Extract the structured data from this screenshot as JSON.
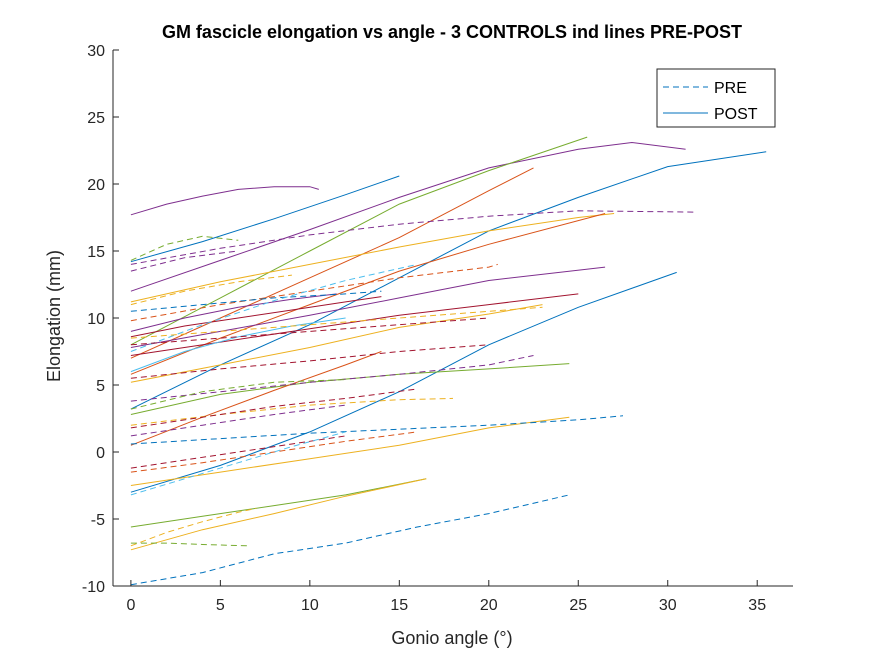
{
  "chart_data": {
    "type": "line",
    "title": "GM fascicle elongation vs angle - 3 CONTROLS ind lines PRE-POST",
    "xlabel": "Gonio angle (°)",
    "ylabel": "Elongation (mm)",
    "xlim": [
      -1,
      37
    ],
    "ylim": [
      -10,
      30
    ],
    "xticks": [
      0,
      5,
      10,
      15,
      20,
      25,
      30,
      35
    ],
    "yticks": [
      -10,
      -5,
      0,
      5,
      10,
      15,
      20,
      25,
      30
    ],
    "xtick_labels": [
      "0",
      "5",
      "10",
      "15",
      "20",
      "25",
      "30",
      "35"
    ],
    "ytick_labels": [
      "-10",
      "-5",
      "0",
      "5",
      "10",
      "15",
      "20",
      "25",
      "30"
    ],
    "grid": false,
    "legend": {
      "placement": "top-right",
      "entries": [
        {
          "label": "PRE",
          "style": "dashed",
          "color": "#0072BD"
        },
        {
          "label": "POST",
          "style": "solid",
          "color": "#0072BD"
        }
      ]
    },
    "series": [
      {
        "style": "solid",
        "color": "#7E2F8E",
        "x": [
          0,
          2,
          4,
          6,
          8,
          10,
          10.5
        ],
        "y": [
          17.7,
          18.5,
          19.1,
          19.6,
          19.8,
          19.8,
          19.6
        ]
      },
      {
        "style": "solid",
        "color": "#7E2F8E",
        "x": [
          0,
          5,
          10,
          15,
          20,
          25,
          28,
          31
        ],
        "y": [
          12.0,
          14.3,
          16.6,
          19.0,
          21.2,
          22.6,
          23.1,
          22.6
        ]
      },
      {
        "style": "solid",
        "color": "#0072BD",
        "x": [
          0,
          4,
          8,
          12,
          15
        ],
        "y": [
          14.2,
          15.7,
          17.4,
          19.2,
          20.6
        ]
      },
      {
        "style": "solid",
        "color": "#77AC30",
        "x": [
          0,
          5,
          10,
          15,
          20,
          25.5
        ],
        "y": [
          8.0,
          11.5,
          15.0,
          18.5,
          21.0,
          23.5
        ]
      },
      {
        "style": "solid",
        "color": "#D95319",
        "x": [
          0,
          5,
          10,
          15,
          20,
          22.5
        ],
        "y": [
          7.0,
          10.0,
          13.0,
          16.0,
          19.5,
          21.2
        ]
      },
      {
        "style": "solid",
        "color": "#0072BD",
        "x": [
          0,
          5,
          10,
          15,
          20,
          25,
          30,
          35.5
        ],
        "y": [
          3.2,
          6.5,
          9.5,
          13.0,
          16.5,
          19.0,
          21.3,
          22.4
        ]
      },
      {
        "style": "solid",
        "color": "#EDB120",
        "x": [
          0,
          5,
          10,
          15,
          20,
          25,
          27
        ],
        "y": [
          11.2,
          12.7,
          14.0,
          15.3,
          16.5,
          17.5,
          17.8
        ]
      },
      {
        "style": "solid",
        "color": "#D95319",
        "x": [
          0,
          5,
          10,
          15,
          20,
          26.5
        ],
        "y": [
          5.8,
          8.5,
          11.0,
          13.5,
          15.5,
          17.8
        ]
      },
      {
        "style": "solid",
        "color": "#7E2F8E",
        "x": [
          0,
          5,
          10,
          15,
          20,
          26.5
        ],
        "y": [
          7.8,
          9.0,
          10.2,
          11.5,
          12.8,
          13.8
        ]
      },
      {
        "style": "solid",
        "color": "#0072BD",
        "x": [
          0,
          5,
          10,
          15,
          20,
          25,
          30.5
        ],
        "y": [
          -3.0,
          -1.0,
          1.5,
          4.5,
          8.0,
          10.8,
          13.4
        ]
      },
      {
        "style": "solid",
        "color": "#A2142F",
        "x": [
          0,
          5,
          10,
          15,
          20,
          25
        ],
        "y": [
          7.2,
          8.2,
          9.2,
          10.2,
          11.0,
          11.8
        ]
      },
      {
        "style": "solid",
        "color": "#EDB120",
        "x": [
          0,
          5,
          10,
          15,
          20,
          23
        ],
        "y": [
          5.2,
          6.5,
          7.8,
          9.3,
          10.3,
          11.0
        ]
      },
      {
        "style": "solid",
        "color": "#77AC30",
        "x": [
          0,
          5,
          10,
          15,
          20,
          24.5
        ],
        "y": [
          2.8,
          4.3,
          5.2,
          5.8,
          6.2,
          6.6
        ]
      },
      {
        "style": "solid",
        "color": "#D95319",
        "x": [
          0,
          4,
          8,
          12,
          14
        ],
        "y": [
          0.5,
          2.6,
          4.6,
          6.5,
          7.5
        ]
      },
      {
        "style": "solid",
        "color": "#EDB120",
        "x": [
          0,
          5,
          10,
          15,
          20,
          24.5
        ],
        "y": [
          -2.5,
          -1.5,
          -0.5,
          0.5,
          1.8,
          2.6
        ]
      },
      {
        "style": "solid",
        "color": "#77AC30",
        "x": [
          0,
          4,
          8,
          12,
          16.5
        ],
        "y": [
          -5.6,
          -4.8,
          -4.0,
          -3.2,
          -2.0
        ]
      },
      {
        "style": "solid",
        "color": "#EDB120",
        "x": [
          0,
          4,
          8,
          12,
          16.5
        ],
        "y": [
          -7.3,
          -5.8,
          -4.6,
          -3.3,
          -2.0
        ]
      },
      {
        "style": "solid",
        "color": "#4DBEEE",
        "x": [
          0,
          3,
          6,
          9,
          12
        ],
        "y": [
          6.0,
          7.5,
          8.6,
          9.4,
          10.0
        ]
      },
      {
        "style": "solid",
        "color": "#A2142F",
        "x": [
          0,
          3,
          6,
          9,
          12,
          14
        ],
        "y": [
          8.6,
          9.4,
          10.0,
          10.6,
          11.2,
          11.6
        ]
      },
      {
        "style": "solid",
        "color": "#7E2F8E",
        "x": [
          0,
          3,
          6,
          9,
          11.5
        ],
        "y": [
          9.0,
          10.0,
          10.8,
          11.4,
          11.8
        ]
      },
      {
        "style": "dashed",
        "color": "#7E2F8E",
        "x": [
          0,
          5,
          10,
          15,
          20,
          25,
          31.5
        ],
        "y": [
          14.0,
          15.2,
          16.2,
          17.0,
          17.6,
          18.0,
          17.9
        ]
      },
      {
        "style": "dashed",
        "color": "#77AC30",
        "x": [
          0,
          2,
          4,
          6
        ],
        "y": [
          14.3,
          15.5,
          16.1,
          15.8
        ]
      },
      {
        "style": "dashed",
        "color": "#7E2F8E",
        "x": [
          0,
          3,
          6
        ],
        "y": [
          13.5,
          14.5,
          15.0
        ]
      },
      {
        "style": "dashed",
        "color": "#EDB120",
        "x": [
          0,
          3,
          6,
          9
        ],
        "y": [
          11.0,
          12.0,
          12.7,
          13.2
        ]
      },
      {
        "style": "dashed",
        "color": "#D95319",
        "x": [
          0,
          5,
          10,
          15,
          20,
          20.5
        ],
        "y": [
          9.8,
          11.0,
          12.0,
          13.0,
          13.8,
          14.0
        ]
      },
      {
        "style": "dashed",
        "color": "#0072BD",
        "x": [
          0,
          4,
          8,
          12,
          14
        ],
        "y": [
          10.5,
          11.0,
          11.5,
          11.8,
          12.0
        ]
      },
      {
        "style": "dashed",
        "color": "#4DBEEE",
        "x": [
          0,
          4,
          8,
          12,
          16
        ],
        "y": [
          7.5,
          9.5,
          11.3,
          12.8,
          14.0
        ]
      },
      {
        "style": "dashed",
        "color": "#EDB120",
        "x": [
          0,
          5,
          10,
          15,
          20,
          23
        ],
        "y": [
          8.5,
          9.0,
          9.5,
          10.0,
          10.5,
          10.8
        ]
      },
      {
        "style": "dashed",
        "color": "#A2142F",
        "x": [
          0,
          5,
          10,
          15,
          20
        ],
        "y": [
          8.0,
          8.5,
          9.0,
          9.5,
          10.0
        ]
      },
      {
        "style": "dashed",
        "color": "#A2142F",
        "x": [
          0,
          5,
          10,
          15,
          20
        ],
        "y": [
          5.5,
          6.2,
          6.8,
          7.5,
          8.0
        ]
      },
      {
        "style": "dashed",
        "color": "#7E2F8E",
        "x": [
          0,
          5,
          10,
          15,
          20,
          22.5
        ],
        "y": [
          3.8,
          4.5,
          5.2,
          5.8,
          6.5,
          7.2
        ]
      },
      {
        "style": "dashed",
        "color": "#77AC30",
        "x": [
          0,
          4,
          8,
          12
        ],
        "y": [
          3.2,
          4.5,
          5.2,
          5.4
        ]
      },
      {
        "style": "dashed",
        "color": "#EDB120",
        "x": [
          0,
          5,
          10,
          15,
          18
        ],
        "y": [
          2.0,
          2.8,
          3.5,
          3.9,
          4.0
        ]
      },
      {
        "style": "dashed",
        "color": "#7E2F8E",
        "x": [
          0,
          4,
          8,
          12
        ],
        "y": [
          1.2,
          2.0,
          2.8,
          3.5
        ]
      },
      {
        "style": "dashed",
        "color": "#A2142F",
        "x": [
          0,
          4,
          8,
          12,
          16
        ],
        "y": [
          1.8,
          2.6,
          3.4,
          4.0,
          4.7
        ]
      },
      {
        "style": "dashed",
        "color": "#0072BD",
        "x": [
          0,
          5,
          10,
          15,
          20,
          25,
          27.5
        ],
        "y": [
          0.6,
          1.0,
          1.4,
          1.7,
          2.0,
          2.4,
          2.7
        ]
      },
      {
        "style": "dashed",
        "color": "#D95319",
        "x": [
          0,
          4,
          8,
          12,
          16
        ],
        "y": [
          -1.5,
          -0.8,
          0.0,
          0.8,
          1.5
        ]
      },
      {
        "style": "dashed",
        "color": "#A2142F",
        "x": [
          0,
          3,
          6,
          9,
          12
        ],
        "y": [
          -1.2,
          -0.6,
          0.0,
          0.6,
          1.2
        ]
      },
      {
        "style": "dashed",
        "color": "#4DBEEE",
        "x": [
          0,
          3,
          6,
          9,
          12
        ],
        "y": [
          -3.2,
          -2.0,
          -0.8,
          0.4,
          1.5
        ]
      },
      {
        "style": "dashed",
        "color": "#EDB120",
        "x": [
          0,
          2,
          4,
          6,
          7
        ],
        "y": [
          -7.0,
          -6.0,
          -5.2,
          -4.5,
          -4.2
        ]
      },
      {
        "style": "dashed",
        "color": "#77AC30",
        "x": [
          0,
          2,
          4,
          6.5
        ],
        "y": [
          -6.8,
          -6.8,
          -6.9,
          -7.0
        ]
      },
      {
        "style": "dashed",
        "color": "#0072BD",
        "x": [
          0,
          4,
          8,
          12,
          16,
          20,
          24.5
        ],
        "y": [
          -9.9,
          -9.0,
          -7.6,
          -6.8,
          -5.6,
          -4.6,
          -3.2
        ]
      }
    ]
  }
}
